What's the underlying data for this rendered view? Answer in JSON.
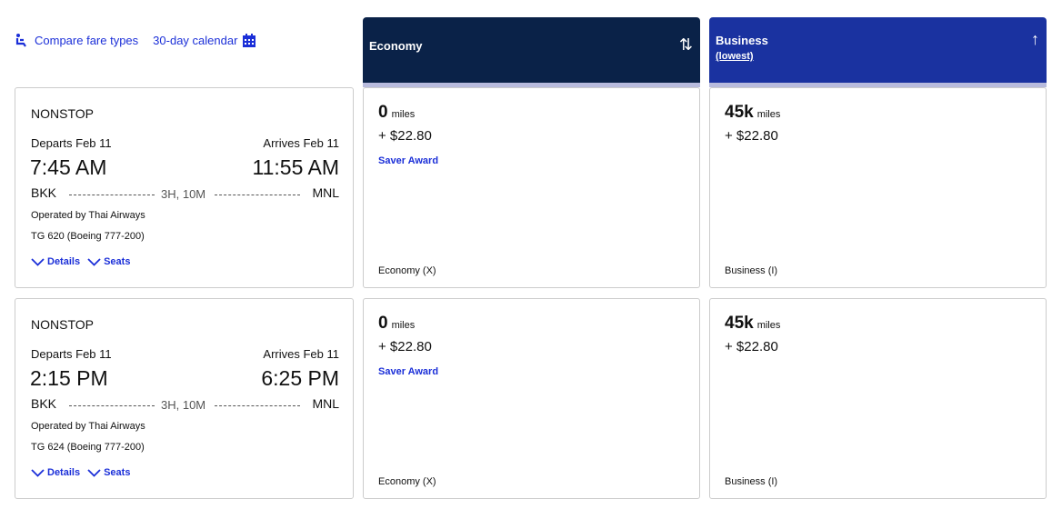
{
  "toolbar": {
    "compare_label": "Compare fare types",
    "calendar_label": "30-day calendar"
  },
  "columns": [
    {
      "title": "Economy",
      "subtitle": "",
      "sort_icon": "sort-both-icon",
      "color": "#0a2248"
    },
    {
      "title": "Business",
      "subtitle": "(lowest)",
      "sort_icon": "sort-up-icon",
      "color": "#1a32a0"
    }
  ],
  "flights": [
    {
      "stops": "NONSTOP",
      "departs": "Departs Feb 11",
      "arrives": "Arrives Feb 11",
      "dep_time": "7:45 AM",
      "arr_time": "11:55 AM",
      "origin": "BKK",
      "dest": "MNL",
      "duration": "3H, 10M",
      "operator": "Operated by Thai Airways",
      "flight": "TG 620 (Boeing 777-200)",
      "details": "Details",
      "seats": "Seats",
      "fares": [
        {
          "miles": "0",
          "unit": "miles",
          "tax": "+ $22.80",
          "award": "Saver Award",
          "class": "Economy (X)"
        },
        {
          "miles": "45k",
          "unit": "miles",
          "tax": "+ $22.80",
          "award": "",
          "class": "Business (I)"
        }
      ]
    },
    {
      "stops": "NONSTOP",
      "departs": "Departs Feb 11",
      "arrives": "Arrives Feb 11",
      "dep_time": "2:15 PM",
      "arr_time": "6:25 PM",
      "origin": "BKK",
      "dest": "MNL",
      "duration": "3H, 10M",
      "operator": "Operated by Thai Airways",
      "flight": "TG 624 (Boeing 777-200)",
      "details": "Details",
      "seats": "Seats",
      "fares": [
        {
          "miles": "0",
          "unit": "miles",
          "tax": "+ $22.80",
          "award": "Saver Award",
          "class": "Economy (X)"
        },
        {
          "miles": "45k",
          "unit": "miles",
          "tax": "+ $22.80",
          "award": "",
          "class": "Business (I)"
        }
      ]
    }
  ]
}
